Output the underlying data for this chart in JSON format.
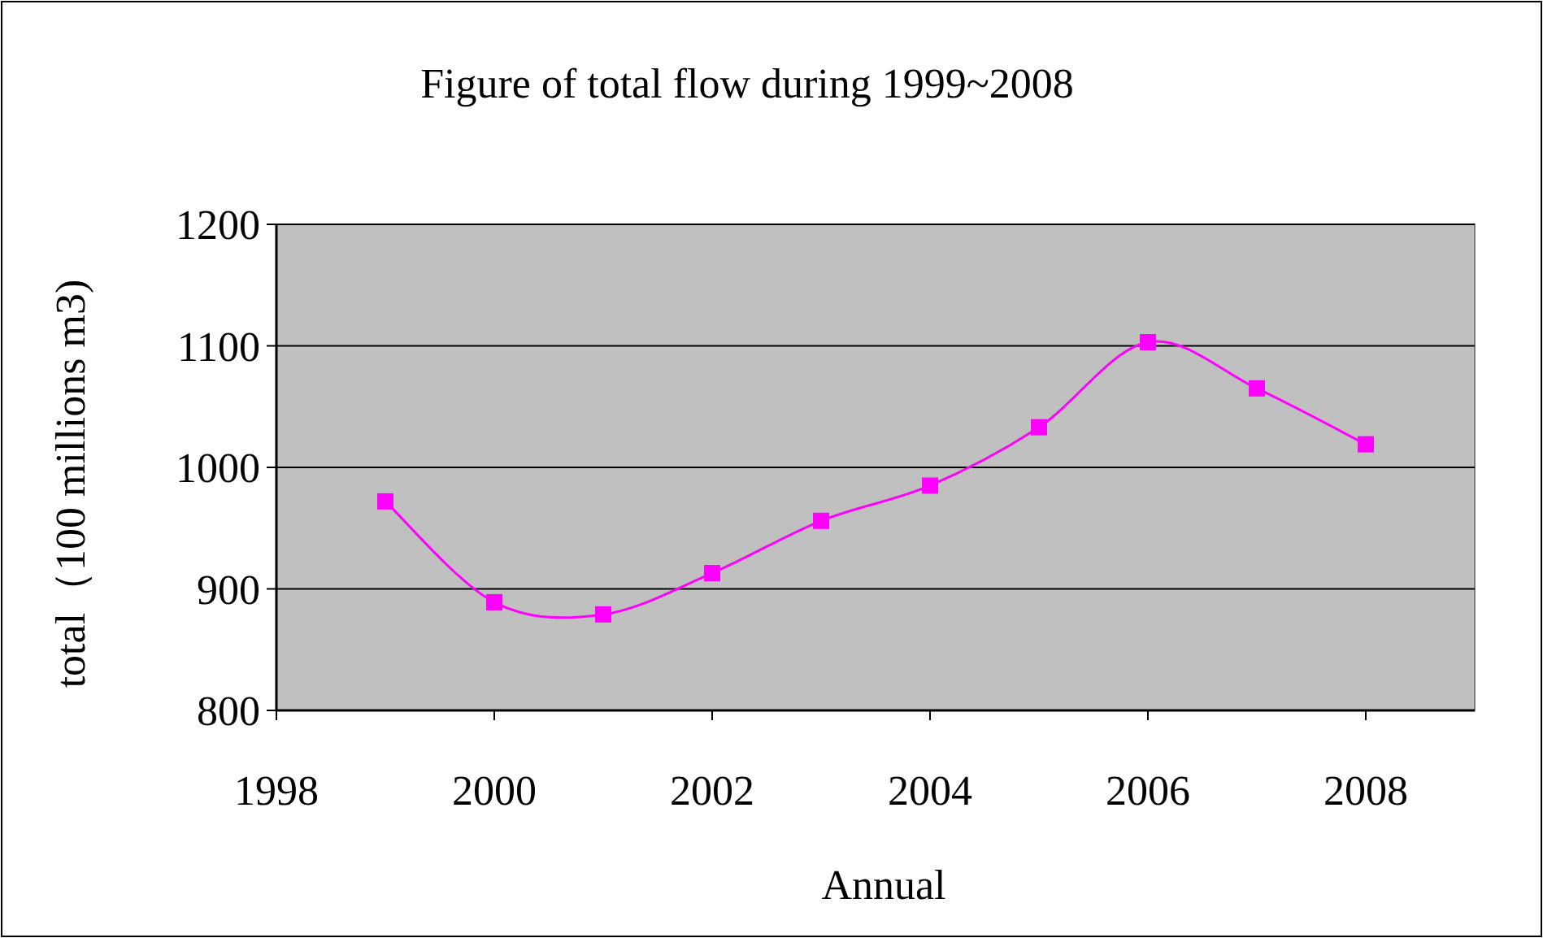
{
  "chart_data": {
    "type": "line",
    "title": "Figure of  total flow during 1999~2008",
    "xlabel": "Annual",
    "ylabel": "total（100 millions m3)",
    "x": [
      1999,
      2000,
      2001,
      2002,
      2003,
      2004,
      2005,
      2006,
      2007,
      2008
    ],
    "series": [
      {
        "color": "#ff00ff",
        "values": [
          972,
          889,
          879,
          913,
          956,
          985,
          1033,
          1103,
          1065,
          1019
        ]
      }
    ],
    "xlim": [
      1998,
      2009
    ],
    "xticks": [
      1998,
      2000,
      2002,
      2004,
      2006,
      2008
    ],
    "ylim": [
      800,
      1200
    ],
    "yticks": [
      800,
      900,
      1000,
      1100,
      1200
    ],
    "grid": "y",
    "marker": "square",
    "line_style": "solid"
  }
}
